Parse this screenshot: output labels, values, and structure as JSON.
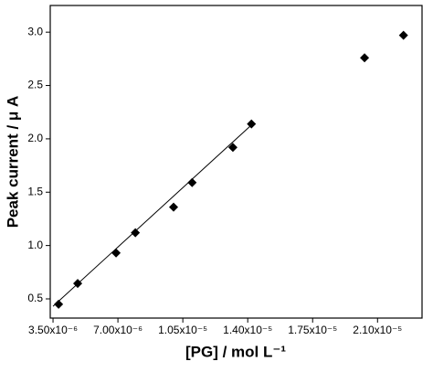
{
  "chart_data": {
    "type": "scatter",
    "xlabel": "[PG] / mol L⁻¹",
    "ylabel": "Peak current / μ A",
    "xlim": [
      3.35e-06,
      2.34e-05
    ],
    "ylim": [
      0.32,
      3.25
    ],
    "xticks": [
      {
        "value": 3.5e-06,
        "label": "3.50x10⁻⁶"
      },
      {
        "value": 7e-06,
        "label": "7.00x10⁻⁶"
      },
      {
        "value": 1.05e-05,
        "label": "1.05x10⁻⁵"
      },
      {
        "value": 1.4e-05,
        "label": "1.40x10⁻⁵"
      },
      {
        "value": 1.75e-05,
        "label": "1.75x10⁻⁵"
      },
      {
        "value": 2.1e-05,
        "label": "2.10x10⁻⁵"
      }
    ],
    "yticks": [
      0.5,
      {
        "value": 1,
        "label": "1.0"
      },
      1.5,
      {
        "value": 2,
        "label": "2.0"
      },
      2.5,
      {
        "value": 3,
        "label": "3.0"
      }
    ],
    "series": [
      {
        "color": "#000000",
        "marker": "diamond",
        "x": [
          3.8e-06,
          4.83e-06,
          6.9e-06,
          7.94e-06,
          1e-05,
          1.1e-05,
          1.32e-05,
          1.42e-05,
          2.03e-05,
          2.24e-05
        ],
        "values": [
          0.45,
          0.645,
          0.93,
          1.12,
          1.36,
          1.59,
          1.92,
          2.14,
          2.76,
          2.97
        ]
      },
      {
        "color": "#000000",
        "marker": "line",
        "x": [
          3.5e-06,
          1.42e-05
        ],
        "values": [
          0.43,
          2.13
        ]
      }
    ]
  }
}
